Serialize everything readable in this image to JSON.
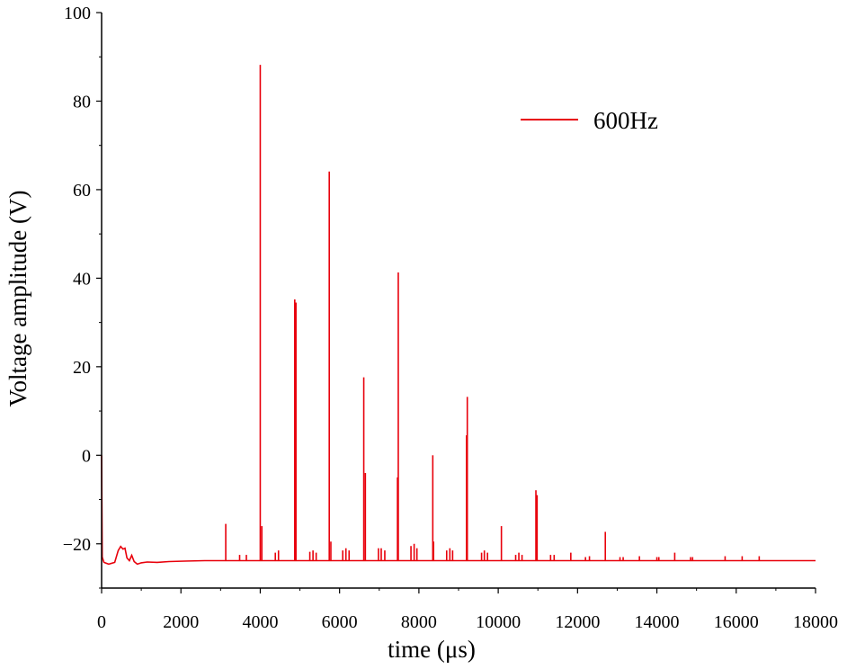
{
  "chart_data": {
    "type": "line",
    "title": "",
    "xlabel": "time (μs)",
    "ylabel": "Voltage amplitude (V)",
    "xlim": [
      0,
      18000
    ],
    "ylim": [
      -30,
      100
    ],
    "x_ticks": [
      0,
      2000,
      4000,
      6000,
      8000,
      10000,
      12000,
      14000,
      16000,
      18000
    ],
    "x_tick_labels": [
      "0",
      "2000",
      "4000",
      "6000",
      "8000",
      "10000",
      "12000",
      "14000",
      "16000",
      "18000"
    ],
    "y_ticks": [
      -20,
      0,
      20,
      40,
      60,
      80,
      100
    ],
    "y_tick_labels": [
      "−20",
      "0",
      "20",
      "40",
      "60",
      "80",
      "100"
    ],
    "grid": false,
    "legend_position": "top-right",
    "colors": {
      "series": "#e8000b"
    },
    "series": [
      {
        "name": "600Hz",
        "baseline": -23.8,
        "spikes": [
          [
            3130,
            -15.5
          ],
          [
            3480,
            -22.5
          ],
          [
            3650,
            -22.5
          ],
          [
            4000,
            88.2
          ],
          [
            4040,
            -16
          ],
          [
            4380,
            -22
          ],
          [
            4460,
            -21.5
          ],
          [
            4870,
            35.2
          ],
          [
            4900,
            34.5
          ],
          [
            5250,
            -21.8
          ],
          [
            5330,
            -21.5
          ],
          [
            5410,
            -22
          ],
          [
            5740,
            64.1
          ],
          [
            5780,
            -19.5
          ],
          [
            6080,
            -21.5
          ],
          [
            6160,
            -21
          ],
          [
            6240,
            -21.5
          ],
          [
            6610,
            17.6
          ],
          [
            6650,
            -4
          ],
          [
            6980,
            -21
          ],
          [
            7050,
            -21
          ],
          [
            7140,
            -21.5
          ],
          [
            7480,
            41.3
          ],
          [
            7460,
            -5
          ],
          [
            7800,
            -20.5
          ],
          [
            7880,
            -20
          ],
          [
            7950,
            -21
          ],
          [
            8350,
            0
          ],
          [
            8370,
            -19.5
          ],
          [
            8700,
            -21.5
          ],
          [
            8780,
            -21
          ],
          [
            8850,
            -21.5
          ],
          [
            9220,
            13.2
          ],
          [
            9200,
            4.5
          ],
          [
            9580,
            -22
          ],
          [
            9650,
            -21.5
          ],
          [
            9730,
            -22
          ],
          [
            10080,
            -16
          ],
          [
            10440,
            -22.5
          ],
          [
            10520,
            -22
          ],
          [
            10600,
            -22.5
          ],
          [
            10950,
            -7.9
          ],
          [
            10980,
            -9
          ],
          [
            11320,
            -22.5
          ],
          [
            11410,
            -22.5
          ],
          [
            11830,
            -22
          ],
          [
            12200,
            -23
          ],
          [
            12300,
            -22.8
          ],
          [
            12700,
            -17.3
          ],
          [
            13070,
            -23
          ],
          [
            13150,
            -23
          ],
          [
            13560,
            -22.8
          ],
          [
            14000,
            -23
          ],
          [
            14050,
            -23
          ],
          [
            14450,
            -22
          ],
          [
            14850,
            -23
          ],
          [
            14900,
            -23
          ],
          [
            15720,
            -22.8
          ],
          [
            16150,
            -22.8
          ],
          [
            16580,
            -22.8
          ]
        ]
      }
    ]
  }
}
